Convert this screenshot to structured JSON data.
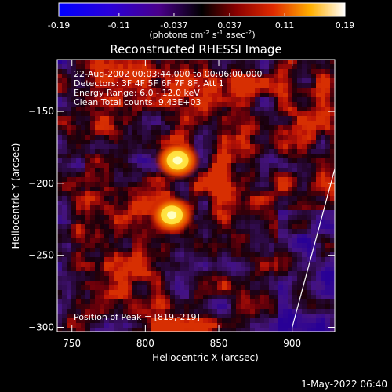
{
  "colorbar": {
    "ticks": [
      "-0.19",
      "-0.11",
      "-0.037",
      "0.037",
      "0.11",
      "0.19"
    ],
    "unit_main": "(photons cm",
    "unit_exp1": "-2",
    "unit_mid": " s",
    "unit_exp2": "-1",
    "unit_tail": " asec",
    "unit_exp3": "-2",
    "unit_close": ")",
    "range": [
      -0.19,
      0.19
    ]
  },
  "header": {
    "title": "Reconstructed RHESSI Image"
  },
  "annotation": {
    "line1": "22-Aug-2002 00:03:44.000 to 00:06:00.000",
    "line2": "Detectors: 3F 4F 5F 6F 7F 8F, Att 1",
    "line3": "Energy Range: 6.0 - 12.0 keV",
    "line4": "Clean     Total counts: 9.43E+03",
    "peak": "Position of Peak = [819,-219]"
  },
  "footer": {
    "timestamp": "1-May-2022 06:40"
  },
  "chart_data": {
    "type": "heatmap",
    "title": "Reconstructed RHESSI Image",
    "xlabel": "Heliocentric X (arcsec)",
    "ylabel": "Heliocentric Y (arcsec)",
    "xlim": [
      740,
      929
    ],
    "ylim": [
      -303,
      -114
    ],
    "xticks": [
      750,
      800,
      850,
      900
    ],
    "yticks": [
      -150,
      -200,
      -250,
      -300
    ],
    "peak": [
      819,
      -219
    ],
    "sources": [
      {
        "x": 822,
        "y": -184,
        "value": 0.19
      },
      {
        "x": 818,
        "y": -222,
        "value": 0.19
      }
    ],
    "value_range": [
      -0.19,
      0.19
    ],
    "limb_line": [
      [
        900,
        -300
      ],
      [
        929,
        -190
      ]
    ]
  }
}
